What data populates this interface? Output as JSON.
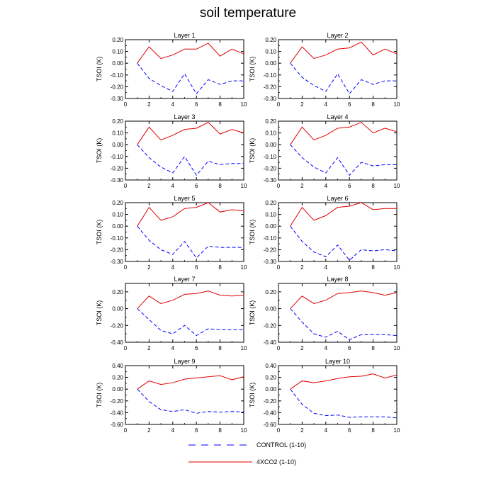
{
  "chart_data": {
    "type": "line",
    "title": "soil temperature",
    "grid": false,
    "legend_position": "bottom-center",
    "x": [
      1,
      2,
      3,
      4,
      5,
      6,
      7,
      8,
      9,
      10
    ],
    "xlim": [
      0,
      10
    ],
    "xticks": [
      0,
      2,
      4,
      6,
      8,
      10
    ],
    "series_style": [
      {
        "name": "CONTROL (1-10)",
        "color": "#0000ff",
        "dash": "dashed"
      },
      {
        "name": "4XCO2 (1-10)",
        "color": "#e00000",
        "dash": "solid"
      }
    ],
    "panels": [
      {
        "title": "Layer 1",
        "ylabel": "TSOI  (K)",
        "ylim": [
          -0.3,
          0.2
        ],
        "yticks": [
          0.2,
          0.1,
          0.0,
          -0.1,
          -0.2,
          -0.3
        ],
        "ytick_labels": [
          "0.20",
          "0.10",
          "0.00",
          "-0.10",
          "-0.20",
          "-0.30"
        ],
        "series": [
          {
            "name": "4XCO2 (1-10)",
            "values": [
              0.0,
              0.14,
              0.04,
              0.07,
              0.12,
              0.12,
              0.17,
              0.06,
              0.12,
              0.08
            ]
          },
          {
            "name": "CONTROL (1-10)",
            "values": [
              0.0,
              -0.13,
              -0.19,
              -0.24,
              -0.09,
              -0.26,
              -0.14,
              -0.18,
              -0.15,
              -0.15
            ]
          }
        ]
      },
      {
        "title": "Layer 2",
        "ylabel": "TSOI  (K)",
        "ylim": [
          -0.3,
          0.2
        ],
        "yticks": [
          0.2,
          0.1,
          0.0,
          -0.1,
          -0.2,
          -0.3
        ],
        "ytick_labels": [
          "0.20",
          "0.10",
          "0.00",
          "-0.10",
          "-0.20",
          "-0.30"
        ],
        "series": [
          {
            "name": "4XCO2 (1-10)",
            "values": [
              0.0,
              0.14,
              0.04,
              0.07,
              0.12,
              0.13,
              0.18,
              0.07,
              0.12,
              0.08
            ]
          },
          {
            "name": "CONTROL (1-10)",
            "values": [
              0.0,
              -0.12,
              -0.19,
              -0.24,
              -0.09,
              -0.26,
              -0.14,
              -0.18,
              -0.15,
              -0.15
            ]
          }
        ]
      },
      {
        "title": "Layer 3",
        "ylabel": "TSOI  (K)",
        "ylim": [
          -0.3,
          0.2
        ],
        "yticks": [
          0.2,
          0.1,
          0.0,
          -0.1,
          -0.2,
          -0.3
        ],
        "ytick_labels": [
          "0.20",
          "0.10",
          "0.00",
          "-0.10",
          "-0.20",
          "-0.30"
        ],
        "series": [
          {
            "name": "4XCO2 (1-10)",
            "values": [
              0.0,
              0.15,
              0.04,
              0.08,
              0.13,
              0.14,
              0.19,
              0.09,
              0.13,
              0.1
            ]
          },
          {
            "name": "CONTROL (1-10)",
            "values": [
              0.0,
              -0.11,
              -0.19,
              -0.24,
              -0.1,
              -0.26,
              -0.14,
              -0.17,
              -0.16,
              -0.16
            ]
          }
        ]
      },
      {
        "title": "Layer 4",
        "ylabel": "TSOI  (K)",
        "ylim": [
          -0.3,
          0.2
        ],
        "yticks": [
          0.2,
          0.1,
          0.0,
          -0.1,
          -0.2,
          -0.3
        ],
        "ytick_labels": [
          "0.20",
          "0.10",
          "0.00",
          "-0.10",
          "-0.20",
          "-0.30"
        ],
        "series": [
          {
            "name": "4XCO2 (1-10)",
            "values": [
              0.0,
              0.15,
              0.04,
              0.08,
              0.14,
              0.15,
              0.19,
              0.1,
              0.14,
              0.11
            ]
          },
          {
            "name": "CONTROL (1-10)",
            "values": [
              0.0,
              -0.11,
              -0.19,
              -0.24,
              -0.11,
              -0.26,
              -0.15,
              -0.18,
              -0.17,
              -0.17
            ]
          }
        ]
      },
      {
        "title": "Layer 5",
        "ylabel": "TSOI  (K)",
        "ylim": [
          -0.3,
          0.2
        ],
        "yticks": [
          0.2,
          0.1,
          0.0,
          -0.1,
          -0.2,
          -0.3
        ],
        "ytick_labels": [
          "0.20",
          "0.10",
          "0.00",
          "-0.10",
          "-0.20",
          "-0.30"
        ],
        "series": [
          {
            "name": "4XCO2 (1-10)",
            "values": [
              0.0,
              0.16,
              0.05,
              0.08,
              0.15,
              0.16,
              0.2,
              0.12,
              0.14,
              0.13
            ]
          },
          {
            "name": "CONTROL (1-10)",
            "values": [
              0.0,
              -0.12,
              -0.2,
              -0.24,
              -0.13,
              -0.27,
              -0.17,
              -0.18,
              -0.18,
              -0.18
            ]
          }
        ]
      },
      {
        "title": "Layer 6",
        "ylabel": "TSOI  (K)",
        "ylim": [
          -0.3,
          0.2
        ],
        "yticks": [
          0.2,
          0.1,
          0.0,
          -0.1,
          -0.2,
          -0.3
        ],
        "ytick_labels": [
          "0.20",
          "0.10",
          "0.00",
          "-0.10",
          "-0.20",
          "-0.30"
        ],
        "series": [
          {
            "name": "4XCO2 (1-10)",
            "values": [
              0.0,
              0.16,
              0.05,
              0.09,
              0.16,
              0.17,
              0.2,
              0.14,
              0.15,
              0.15
            ]
          },
          {
            "name": "CONTROL (1-10)",
            "values": [
              0.0,
              -0.13,
              -0.22,
              -0.26,
              -0.16,
              -0.29,
              -0.2,
              -0.21,
              -0.2,
              -0.21
            ]
          }
        ]
      },
      {
        "title": "Layer 7",
        "ylabel": "TSOI  (K)",
        "ylim": [
          -0.4,
          0.3
        ],
        "yticks": [
          0.2,
          0.0,
          -0.2,
          -0.4
        ],
        "ytick_labels": [
          "0.20",
          "0.00",
          "-0.20",
          "-0.40"
        ],
        "series": [
          {
            "name": "4XCO2 (1-10)",
            "values": [
              0.0,
              0.15,
              0.06,
              0.1,
              0.17,
              0.18,
              0.21,
              0.16,
              0.15,
              0.16
            ]
          },
          {
            "name": "CONTROL (1-10)",
            "values": [
              0.0,
              -0.13,
              -0.26,
              -0.3,
              -0.2,
              -0.32,
              -0.24,
              -0.25,
              -0.25,
              -0.25
            ]
          }
        ]
      },
      {
        "title": "Layer 8",
        "ylabel": "TSOI  (K)",
        "ylim": [
          -0.4,
          0.3
        ],
        "yticks": [
          0.2,
          0.0,
          -0.2,
          -0.4
        ],
        "ytick_labels": [
          "0.20",
          "0.00",
          "-0.20",
          "-0.40"
        ],
        "series": [
          {
            "name": "4XCO2 (1-10)",
            "values": [
              0.0,
              0.15,
              0.06,
              0.1,
              0.18,
              0.19,
              0.21,
              0.19,
              0.16,
              0.19
            ]
          },
          {
            "name": "CONTROL (1-10)",
            "values": [
              0.0,
              -0.16,
              -0.3,
              -0.34,
              -0.27,
              -0.37,
              -0.31,
              -0.31,
              -0.31,
              -0.32
            ]
          }
        ]
      },
      {
        "title": "Layer 9",
        "ylabel": "TSOI  (K)",
        "ylim": [
          -0.6,
          0.4
        ],
        "yticks": [
          0.4,
          0.2,
          0.0,
          -0.2,
          -0.4,
          -0.6
        ],
        "ytick_labels": [
          "0.40",
          "0.20",
          "0.00",
          "-0.20",
          "-0.40",
          "-0.60"
        ],
        "series": [
          {
            "name": "4XCO2 (1-10)",
            "values": [
              0.0,
              0.14,
              0.08,
              0.11,
              0.17,
              0.19,
              0.21,
              0.23,
              0.16,
              0.21
            ]
          },
          {
            "name": "CONTROL (1-10)",
            "values": [
              0.0,
              -0.21,
              -0.35,
              -0.38,
              -0.35,
              -0.41,
              -0.38,
              -0.39,
              -0.38,
              -0.39
            ]
          }
        ]
      },
      {
        "title": "Layer 10",
        "ylabel": "TSOI  (K)",
        "ylim": [
          -0.6,
          0.4
        ],
        "yticks": [
          0.4,
          0.2,
          0.0,
          -0.2,
          -0.4,
          -0.6
        ],
        "ytick_labels": [
          "0.40",
          "0.20",
          "0.00",
          "-0.20",
          "-0.40",
          "-0.60"
        ],
        "series": [
          {
            "name": "4XCO2 (1-10)",
            "values": [
              0.0,
              0.14,
              0.11,
              0.14,
              0.18,
              0.21,
              0.22,
              0.26,
              0.19,
              0.24
            ]
          },
          {
            "name": "CONTROL (1-10)",
            "values": [
              0.0,
              -0.26,
              -0.41,
              -0.45,
              -0.44,
              -0.48,
              -0.47,
              -0.47,
              -0.47,
              -0.49
            ]
          }
        ]
      }
    ]
  }
}
